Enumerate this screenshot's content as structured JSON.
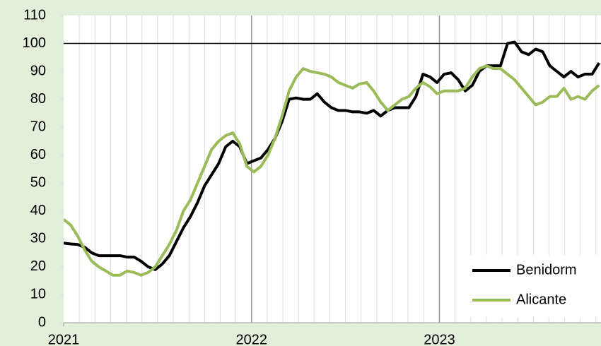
{
  "chart_data": {
    "type": "line",
    "x": [
      2021,
      2021.0375,
      2021.075,
      2021.1125,
      2021.15,
      2021.1875,
      2021.225,
      2021.2625,
      2021.3,
      2021.3375,
      2021.375,
      2021.4125,
      2021.45,
      2021.4875,
      2021.525,
      2021.5625,
      2021.6,
      2021.6375,
      2021.675,
      2021.7125,
      2021.75,
      2021.7875,
      2021.825,
      2021.8625,
      2021.9,
      2021.9375,
      2021.975,
      2022.0125,
      2022.05,
      2022.0875,
      2022.125,
      2022.1625,
      2022.2,
      2022.2375,
      2022.275,
      2022.3125,
      2022.35,
      2022.3875,
      2022.425,
      2022.4625,
      2022.5,
      2022.5375,
      2022.575,
      2022.6125,
      2022.65,
      2022.6875,
      2022.725,
      2022.7625,
      2022.8,
      2022.8375,
      2022.875,
      2022.9125,
      2022.95,
      2022.9875,
      2023.025,
      2023.0625,
      2023.1,
      2023.1375,
      2023.175,
      2023.2125,
      2023.25,
      2023.2875,
      2023.325,
      2023.3625,
      2023.4,
      2023.4375,
      2023.475,
      2023.5125,
      2023.55,
      2023.5875,
      2023.625,
      2023.6625,
      2023.7,
      2023.7375,
      2023.775,
      2023.8125,
      2023.85
    ],
    "series": [
      {
        "name": "Benidorm",
        "color": "#000000",
        "values": [
          28.5,
          28.2,
          28,
          27,
          25,
          24,
          24,
          24,
          24,
          23.5,
          23.5,
          22,
          20,
          19,
          21,
          24,
          29,
          34,
          38,
          43,
          49,
          53,
          57,
          63,
          65,
          63,
          57,
          58,
          59,
          62,
          66,
          72,
          80,
          80.5,
          80,
          80,
          82,
          79,
          77,
          76,
          76,
          75.5,
          75.5,
          75,
          76,
          74,
          76,
          77,
          77,
          77,
          81,
          89,
          88,
          86,
          89,
          89.5,
          87,
          83,
          85,
          90,
          92,
          92,
          92,
          100,
          100.5,
          97,
          96,
          98,
          97,
          92,
          90,
          88,
          90,
          88,
          89,
          89,
          93
        ]
      },
      {
        "name": "Alicante",
        "color": "#9bbb59",
        "values": [
          37,
          35,
          31,
          26,
          22,
          20,
          18.5,
          17,
          17,
          18.5,
          18,
          17,
          18,
          20,
          24,
          28,
          33,
          40,
          44,
          50,
          56,
          62,
          65,
          67,
          68,
          64,
          56,
          54,
          56,
          60,
          66,
          74,
          83,
          88,
          91,
          90,
          89.5,
          89,
          88,
          86,
          85,
          84,
          85.5,
          86,
          83,
          79,
          76,
          78,
          80,
          81,
          84,
          86,
          84.5,
          82,
          83,
          83,
          83,
          84,
          88,
          91,
          92,
          91,
          91,
          89,
          87,
          84,
          81,
          78,
          79,
          81,
          81,
          84,
          80,
          81,
          80,
          83,
          85
        ]
      }
    ],
    "xlim": [
      2021,
      2023.86
    ],
    "xticks": [
      2021,
      2022,
      2023
    ],
    "xminorticks": [
      2021.083,
      2021.167,
      2021.25,
      2021.333,
      2021.417,
      2021.5,
      2021.583,
      2021.667,
      2021.75,
      2021.833,
      2021.917,
      2022.083,
      2022.167,
      2022.25,
      2022.333,
      2022.417,
      2022.5,
      2022.583,
      2022.667,
      2022.75,
      2022.833,
      2022.917,
      2023.083,
      2023.167,
      2023.25,
      2023.333,
      2023.417,
      2023.5,
      2023.583,
      2023.667,
      2023.75,
      2023.833
    ],
    "ylim": [
      0,
      110
    ],
    "yticks": [
      0,
      10,
      20,
      30,
      40,
      50,
      60,
      70,
      80,
      90,
      100,
      110
    ],
    "hline": 100,
    "legend": "lower right"
  }
}
